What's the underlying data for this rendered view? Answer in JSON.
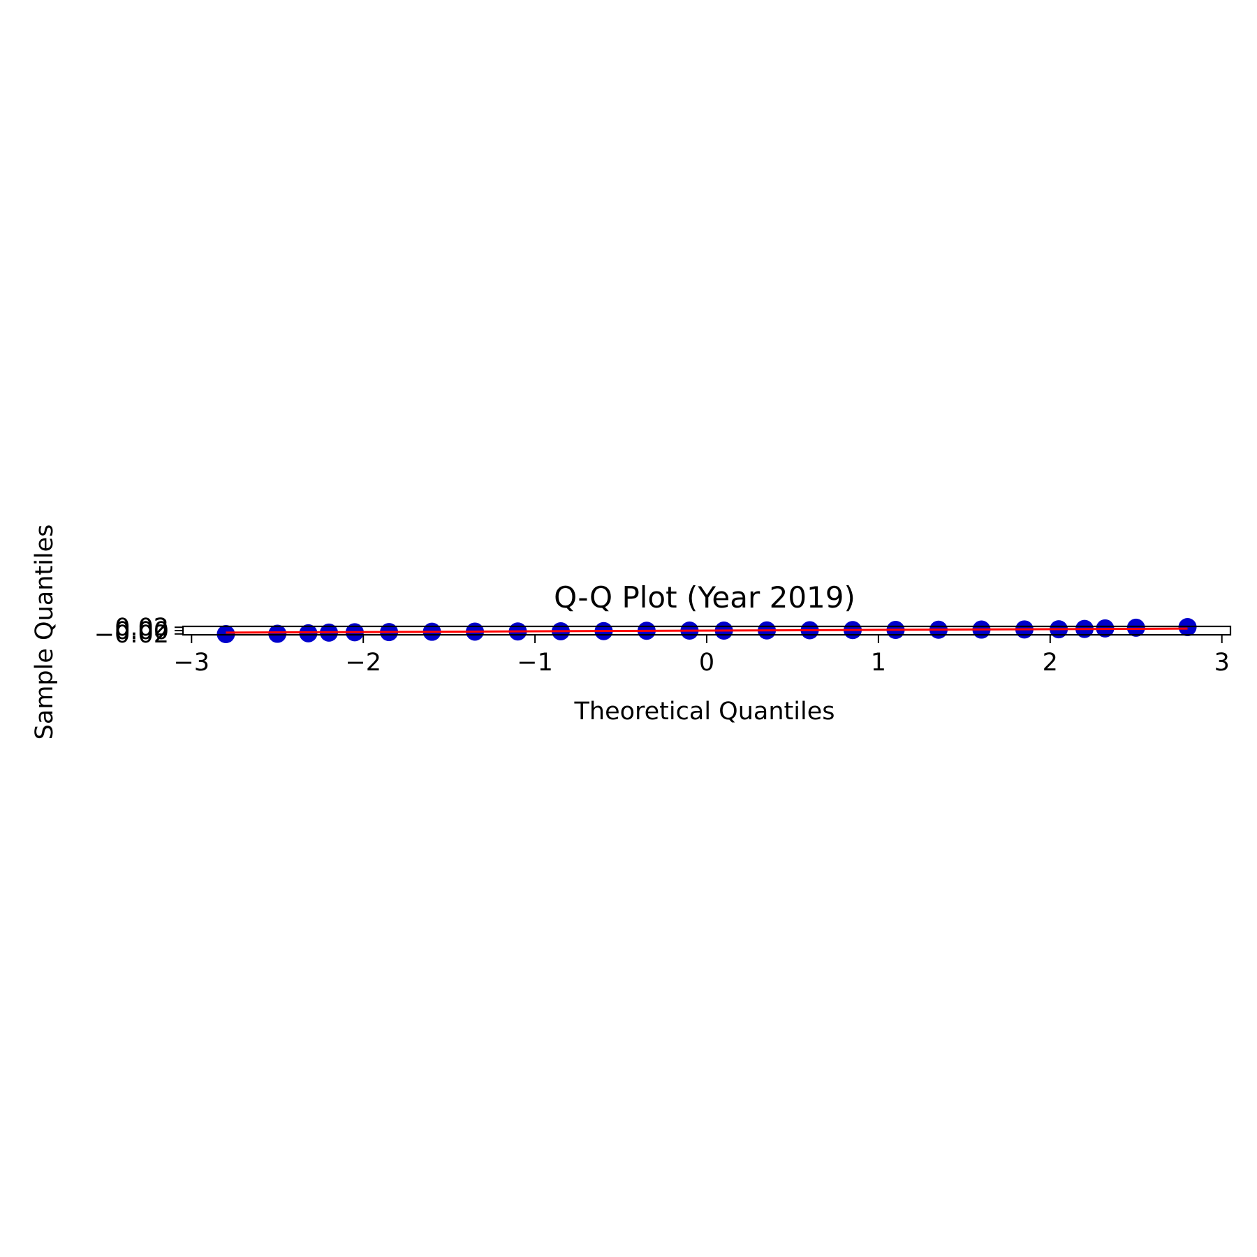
{
  "chart_data": {
    "type": "scatter",
    "title": "Q-Q Plot (Year 2019)",
    "xlabel": "Theoretical Quantiles",
    "ylabel": "Sample Quantiles",
    "xlim": [
      -3.05,
      3.05
    ],
    "ylim": [
      -0.025,
      0.025
    ],
    "x_ticks": [
      -3,
      -2,
      -1,
      0,
      1,
      2,
      3
    ],
    "x_tick_labels": [
      "−3",
      "−2",
      "−1",
      "0",
      "1",
      "2",
      "3"
    ],
    "y_ticks": [
      -0.02,
      0,
      0.02
    ],
    "y_tick_labels": [
      "−0.02",
      "0.00",
      "0.02"
    ],
    "grid": false,
    "legend": "none",
    "colors": {
      "points": "#0000cc",
      "fit_line": "#ff0000"
    },
    "fit_line": {
      "x": [
        -2.8,
        2.8
      ],
      "y": [
        -0.012,
        0.012
      ]
    },
    "series": [
      {
        "x": [
          -2.8,
          -2.5,
          -2.32,
          -2.2,
          -2.05,
          -1.85,
          -1.6,
          -1.35,
          -1.1,
          -0.85,
          -0.6,
          -0.35,
          -0.1,
          0.1,
          0.35,
          0.6,
          0.85,
          1.1,
          1.35,
          1.6,
          1.85,
          2.05,
          2.2,
          2.32,
          2.5,
          2.8
        ],
        "y": [
          -0.021,
          -0.019,
          -0.016,
          -0.012,
          -0.01,
          -0.009,
          -0.007,
          -0.006,
          -0.005,
          -0.004,
          -0.003,
          -0.001,
          0.0,
          0.0,
          0.001,
          0.002,
          0.003,
          0.004,
          0.005,
          0.006,
          0.007,
          0.008,
          0.01,
          0.013,
          0.017,
          0.021
        ]
      }
    ]
  }
}
